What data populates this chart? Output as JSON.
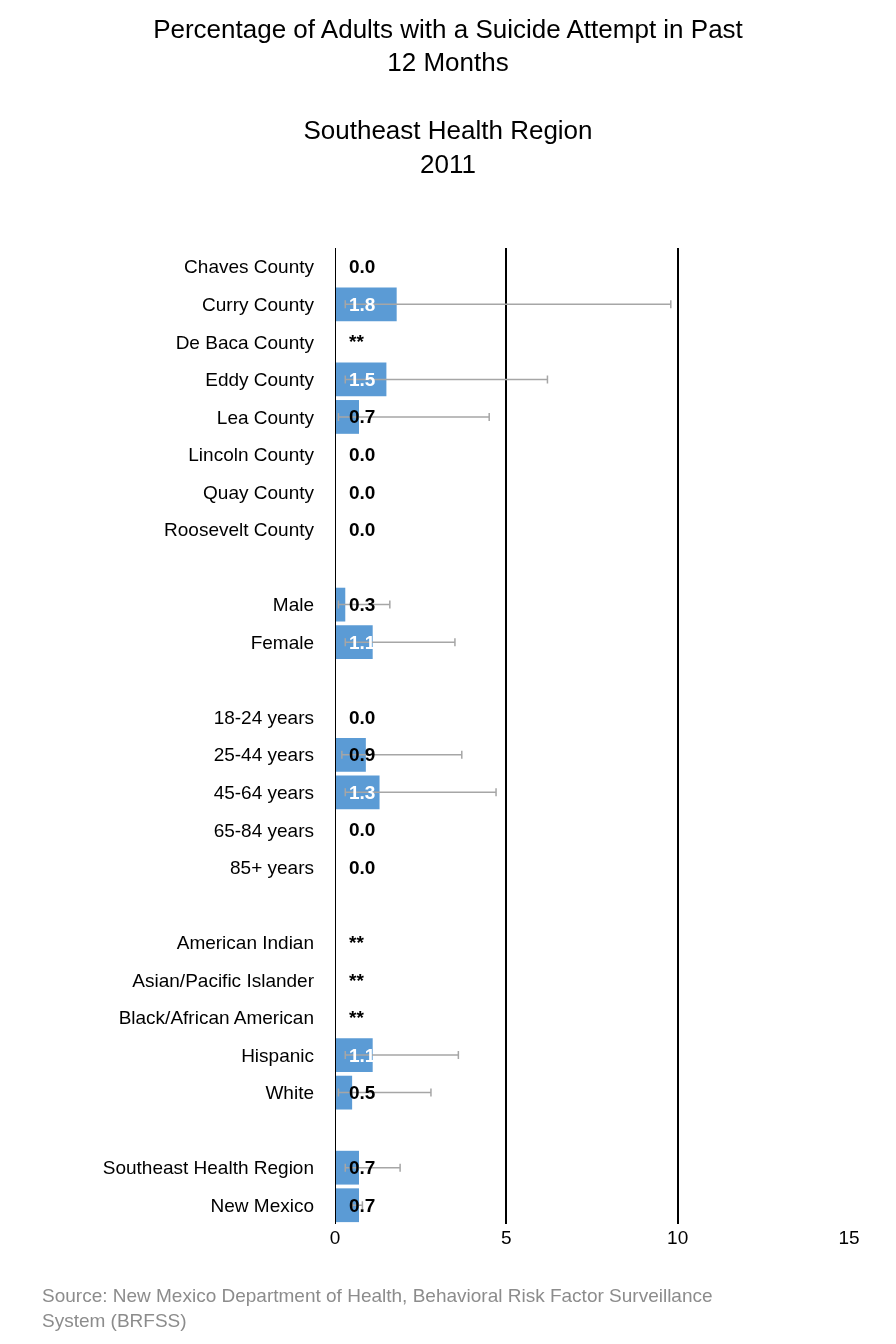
{
  "chart_data": {
    "type": "bar",
    "orientation": "horizontal",
    "title": "Percentage of Adults with a Suicide Attempt in Past 12 Months",
    "subtitle": "Southeast Health Region\n2011",
    "categories": [
      "Chaves County",
      "Curry County",
      "De Baca County",
      "Eddy County",
      "Lea County",
      "Lincoln County",
      "Quay County",
      "Roosevelt County",
      null,
      "Male",
      "Female",
      null,
      "18-24 years",
      "25-44 years",
      "45-64 years",
      "65-84 years",
      "85+ years",
      null,
      "American Indian",
      "Asian/Pacific Islander",
      "Black/African American",
      "Hispanic",
      "White",
      null,
      "Southeast Health Region",
      "New Mexico"
    ],
    "values": [
      0.0,
      1.8,
      null,
      1.5,
      0.7,
      0.0,
      0.0,
      0.0,
      null,
      0.3,
      1.1,
      null,
      0.0,
      0.9,
      1.3,
      0.0,
      0.0,
      null,
      null,
      null,
      null,
      1.1,
      0.5,
      null,
      0.7,
      0.7
    ],
    "value_labels": [
      "0.0",
      "1.8",
      "**",
      "1.5",
      "0.7",
      "0.0",
      "0.0",
      "0.0",
      null,
      "0.3",
      "1.1",
      null,
      "0.0",
      "0.9",
      "1.3",
      "0.0",
      "0.0",
      null,
      "**",
      "**",
      "**",
      "1.1",
      "0.5",
      null,
      "0.7",
      "0.7"
    ],
    "errors": [
      null,
      [
        0.3,
        9.8
      ],
      null,
      [
        0.3,
        6.2
      ],
      [
        0.1,
        4.5
      ],
      null,
      null,
      null,
      null,
      [
        0.1,
        1.6
      ],
      [
        0.3,
        3.5
      ],
      null,
      null,
      [
        0.2,
        3.7
      ],
      [
        0.3,
        4.7
      ],
      null,
      null,
      null,
      null,
      null,
      null,
      [
        0.3,
        3.6
      ],
      [
        0.1,
        2.8
      ],
      null,
      [
        0.3,
        1.9
      ],
      [
        0.5,
        0.8
      ]
    ],
    "color": "#5b9bd5",
    "xlim": [
      0,
      15
    ],
    "xticks": [
      0,
      5,
      10,
      15
    ],
    "grid": "x",
    "annotations": [
      "Source: New Mexico Department of Health, Behavioral Risk Factor Surveillance System (BRFSS)"
    ]
  }
}
